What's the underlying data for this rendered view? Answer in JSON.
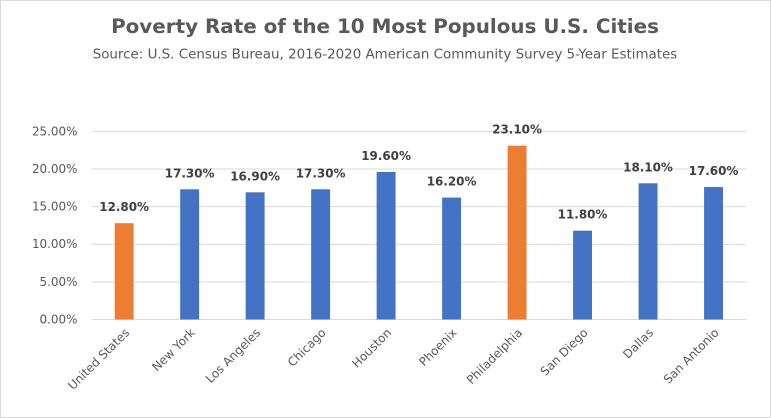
{
  "chart_data": {
    "type": "bar",
    "title": "Poverty Rate of the 10 Most Populous U.S. Cities",
    "subtitle": "Source: U.S. Census Bureau, 2016-2020 American Community Survey 5-Year Estimates",
    "categories": [
      "United States",
      "New York",
      "Los Angeles",
      "Chicago",
      "Houston",
      "Phoenix",
      "Philadelphia",
      "San Diego",
      "Dallas",
      "San Antonio"
    ],
    "values": [
      12.8,
      17.3,
      16.9,
      17.3,
      19.6,
      16.2,
      23.1,
      11.8,
      18.1,
      17.6
    ],
    "data_labels": [
      "12.80%",
      "17.30%",
      "16.90%",
      "17.30%",
      "19.60%",
      "16.20%",
      "23.10%",
      "11.80%",
      "18.10%",
      "17.60%"
    ],
    "highlighted": [
      true,
      false,
      false,
      false,
      false,
      false,
      true,
      false,
      false,
      false
    ],
    "ylim": [
      0,
      25
    ],
    "y_ticks": [
      0,
      5,
      10,
      15,
      20,
      25
    ],
    "y_tick_labels": [
      "0.00%",
      "5.00%",
      "10.00%",
      "15.00%",
      "20.00%",
      "25.00%"
    ],
    "grid": true,
    "legend": "none",
    "colors": {
      "default": "#4472c4",
      "highlight": "#ed7d31"
    }
  }
}
